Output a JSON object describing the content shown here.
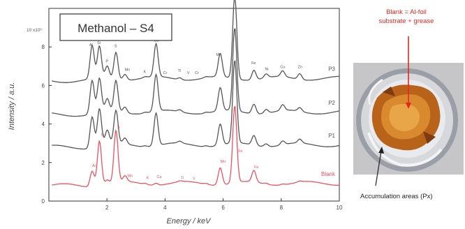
{
  "chart_data": {
    "type": "line",
    "title": "Methanol – S4",
    "xlabel": "Energy / keV",
    "ylabel": "Intensity / a.u.",
    "xlim": [
      0,
      10
    ],
    "ylim": [
      0,
      10
    ],
    "y_multiplier_label": "10 x10³",
    "xticks": [
      2,
      4,
      6,
      8,
      10
    ],
    "yticks": [
      0,
      2,
      4,
      6,
      8
    ],
    "grid": false,
    "series": [
      {
        "name": "Blank",
        "color": "#f05060",
        "offset": 0.8
      },
      {
        "name": "P1",
        "color": "#555555",
        "offset": 2.8
      },
      {
        "name": "P2",
        "color": "#555555",
        "offset": 4.5
      },
      {
        "name": "P3",
        "color": "#555555",
        "offset": 6.25
      }
    ],
    "peaks": [
      {
        "label": "Al",
        "energy": 1.49,
        "heights": [
          0.8,
          1.6,
          1.7,
          1.7
        ]
      },
      {
        "label": "Si",
        "energy": 1.74,
        "heights": [
          2.3,
          1.9,
          1.7,
          1.6
        ]
      },
      {
        "label": "P",
        "energy": 2.01,
        "heights": [
          0.2,
          0.7,
          0.6,
          0.6
        ]
      },
      {
        "label": "S",
        "energy": 2.31,
        "heights": [
          2.7,
          1.7,
          1.6,
          1.4
        ]
      },
      {
        "label": "Mn",
        "energy": 2.62,
        "heights": [
          0.3,
          0.3,
          0.3,
          0.3
        ]
      },
      {
        "label": "K",
        "energy": 3.31,
        "heights": [
          0.05,
          0.05,
          0.05,
          0.05
        ]
      },
      {
        "label": "Ca",
        "energy": 3.69,
        "heights": [
          0.1,
          1.7,
          1.9,
          1.7
        ]
      },
      {
        "label": "Ti",
        "energy": 4.51,
        "heights": [
          0.05,
          0.1,
          0.1,
          0.1
        ]
      },
      {
        "label": "Cr",
        "energy": 5.41,
        "heights": [
          0.05,
          0.05,
          0.05,
          0.05
        ]
      },
      {
        "label": "Mn",
        "energy": 5.9,
        "heights": [
          0.9,
          1.1,
          1.2,
          1.2
        ]
      },
      {
        "label": "Fe",
        "energy": 6.4,
        "heights": [
          4.0,
          4.3,
          4.3,
          4.3
        ]
      },
      {
        "label": "Fe",
        "energy": 7.06,
        "heights": [
          0.6,
          0.5,
          0.5,
          0.5
        ]
      },
      {
        "label": "Ni",
        "energy": 7.48,
        "heights": [
          0.05,
          0.15,
          0.2,
          0.2
        ]
      },
      {
        "label": "Cu",
        "energy": 8.05,
        "heights": [
          0.05,
          0.2,
          0.3,
          0.3
        ]
      },
      {
        "label": "Zn",
        "energy": 8.64,
        "heights": [
          0.05,
          0.2,
          0.2,
          0.3
        ]
      }
    ],
    "peak_label_text": {
      "P3": [
        {
          "text": "Al",
          "energy": 1.45
        },
        {
          "text": "Si",
          "energy": 1.72
        },
        {
          "text": "P",
          "energy": 2.0
        },
        {
          "text": "S",
          "energy": 2.3
        },
        {
          "text": "Mn",
          "energy": 2.7
        },
        {
          "text": "K",
          "energy": 3.3
        },
        {
          "text": "Ca",
          "energy": 3.7
        },
        {
          "text": "Cr",
          "energy": 4.0
        },
        {
          "text": "Ti",
          "energy": 4.5
        },
        {
          "text": "V",
          "energy": 4.8
        },
        {
          "text": "Cr",
          "energy": 5.1
        },
        {
          "text": "Mn",
          "energy": 5.85
        },
        {
          "text": "Fe",
          "energy": 6.4
        },
        {
          "text": "Fe",
          "energy": 7.05
        },
        {
          "text": "Ni",
          "energy": 7.5
        },
        {
          "text": "Cu",
          "energy": 8.05
        },
        {
          "text": "Zn",
          "energy": 8.65
        }
      ],
      "Blank": [
        {
          "text": "Al",
          "energy": 1.45
        },
        {
          "text": "Si",
          "energy": 1.75
        },
        {
          "text": "S",
          "energy": 2.3
        },
        {
          "text": "Mn",
          "energy": 2.7
        },
        {
          "text": "K",
          "energy": 3.3
        },
        {
          "text": "Ca",
          "energy": 3.7
        },
        {
          "text": "Ti",
          "energy": 4.5
        },
        {
          "text": "V",
          "energy": 4.9
        },
        {
          "text": "Mn",
          "energy": 5.9
        },
        {
          "text": "Fe",
          "energy": 6.5
        },
        {
          "text": "Fe",
          "energy": 7.05
        }
      ]
    }
  },
  "annotations": {
    "blank_note": "Blank = Al-foil substrate + grease",
    "accumulation_note": "Accumulation areas (Px)"
  }
}
